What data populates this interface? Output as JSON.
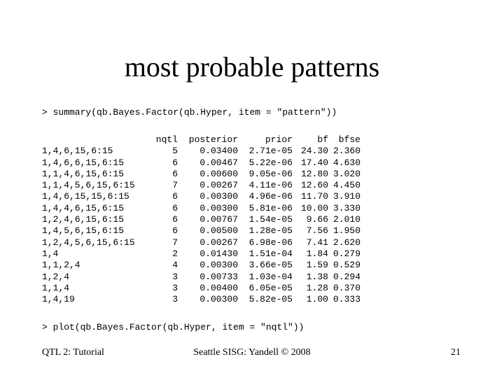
{
  "slide": {
    "title": "most probable patterns",
    "command_summary": "> summary(qb.Bayes.Factor(qb.Hyper, item = \"pattern\"))",
    "command_plot": "> plot(qb.Bayes.Factor(qb.Hyper, item = \"nqtl\"))"
  },
  "table": {
    "headers": {
      "pattern": "",
      "nqtl": "nqtl",
      "posterior": "posterior",
      "prior": "prior",
      "bf": "bf",
      "bfse": "bfse"
    },
    "rows": [
      {
        "pattern": "1,4,6,15,6:15",
        "nqtl": "5",
        "posterior": "0.03400",
        "prior": "2.71e-05",
        "bf": "24.30",
        "bfse": "2.360"
      },
      {
        "pattern": "1,4,6,6,15,6:15",
        "nqtl": "6",
        "posterior": "0.00467",
        "prior": "5.22e-06",
        "bf": "17.40",
        "bfse": "4.630"
      },
      {
        "pattern": "1,1,4,6,15,6:15",
        "nqtl": "6",
        "posterior": "0.00600",
        "prior": "9.05e-06",
        "bf": "12.80",
        "bfse": "3.020"
      },
      {
        "pattern": "1,1,4,5,6,15,6:15",
        "nqtl": "7",
        "posterior": "0.00267",
        "prior": "4.11e-06",
        "bf": "12.60",
        "bfse": "4.450"
      },
      {
        "pattern": "1,4,6,15,15,6:15",
        "nqtl": "6",
        "posterior": "0.00300",
        "prior": "4.96e-06",
        "bf": "11.70",
        "bfse": "3.910"
      },
      {
        "pattern": "1,4,4,6,15,6:15",
        "nqtl": "6",
        "posterior": "0.00300",
        "prior": "5.81e-06",
        "bf": "10.00",
        "bfse": "3.330"
      },
      {
        "pattern": "1,2,4,6,15,6:15",
        "nqtl": "6",
        "posterior": "0.00767",
        "prior": "1.54e-05",
        "bf": "9.66",
        "bfse": "2.010"
      },
      {
        "pattern": "1,4,5,6,15,6:15",
        "nqtl": "6",
        "posterior": "0.00500",
        "prior": "1.28e-05",
        "bf": "7.56",
        "bfse": "1.950"
      },
      {
        "pattern": "1,2,4,5,6,15,6:15",
        "nqtl": "7",
        "posterior": "0.00267",
        "prior": "6.98e-06",
        "bf": "7.41",
        "bfse": "2.620"
      },
      {
        "pattern": "1,4",
        "nqtl": "2",
        "posterior": "0.01430",
        "prior": "1.51e-04",
        "bf": "1.84",
        "bfse": "0.279"
      },
      {
        "pattern": "1,1,2,4",
        "nqtl": "4",
        "posterior": "0.00300",
        "prior": "3.66e-05",
        "bf": "1.59",
        "bfse": "0.529"
      },
      {
        "pattern": "1,2,4",
        "nqtl": "3",
        "posterior": "0.00733",
        "prior": "1.03e-04",
        "bf": "1.38",
        "bfse": "0.294"
      },
      {
        "pattern": "1,1,4",
        "nqtl": "3",
        "posterior": "0.00400",
        "prior": "6.05e-05",
        "bf": "1.28",
        "bfse": "0.370"
      },
      {
        "pattern": "1,4,19",
        "nqtl": "3",
        "posterior": "0.00300",
        "prior": "5.82e-05",
        "bf": "1.00",
        "bfse": "0.333"
      }
    ]
  },
  "footer": {
    "left": "QTL 2: Tutorial",
    "center": "Seattle SISG: Yandell © 2008",
    "page_number": "21"
  }
}
